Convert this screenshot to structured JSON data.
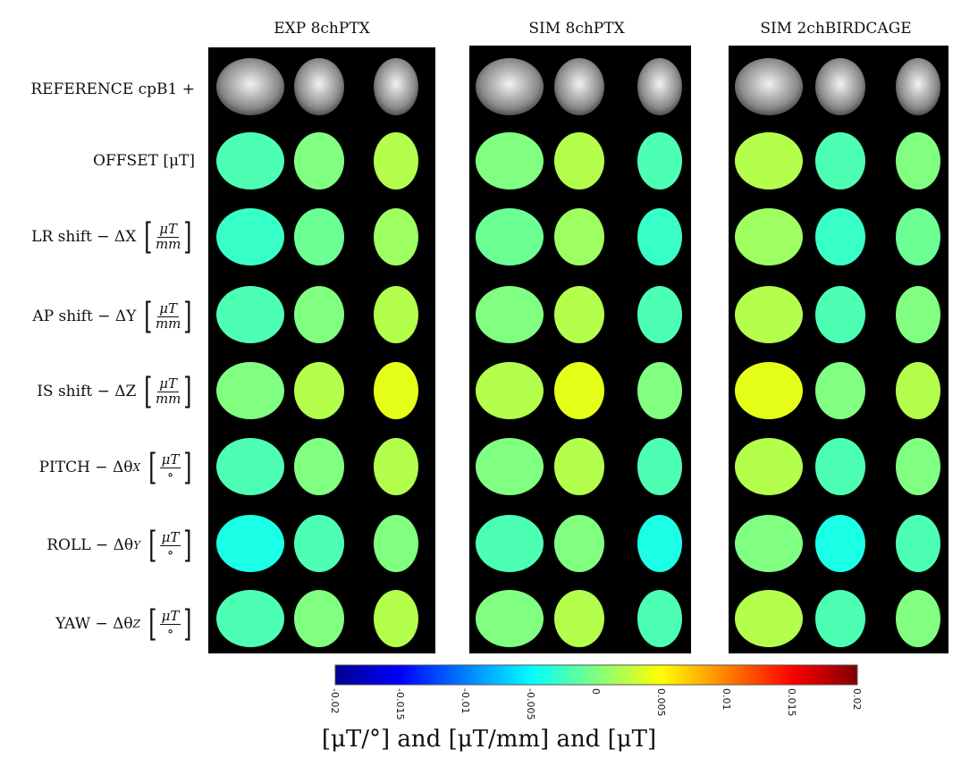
{
  "columns": [
    "EXP 8chPTX",
    "SIM 8chPTX",
    "SIM 2chBIRDCAGE"
  ],
  "rows": [
    {
      "label": "REFERENCE cpB1 +",
      "unit": null,
      "var": null
    },
    {
      "label": "OFFSET [μT]",
      "unit": null,
      "var": null
    },
    {
      "label": "LR shift − ΔX",
      "unit": "mm",
      "var": "X"
    },
    {
      "label": "AP shift −  ΔY",
      "unit": "mm",
      "var": "Y"
    },
    {
      "label": "IS shift − ΔZ",
      "unit": "mm",
      "var": "Z"
    },
    {
      "label": "PITCH − Δθ",
      "sub": "X",
      "unit": "∘"
    },
    {
      "label": "ROLL − Δθ",
      "sub": "Y",
      "unit": "∘"
    },
    {
      "label": "YAW − Δθ",
      "sub": "Z",
      "unit": "∘"
    }
  ],
  "frac_numerator": "μT",
  "colorbar": {
    "ticks": [
      "-0.02",
      "-0.015",
      "-0.01",
      "-0.005",
      "0",
      "0.005",
      "0.01",
      "0.015",
      "0.02"
    ],
    "range": [
      -0.02,
      0.02
    ],
    "colormap": "jet",
    "label": "[μT/°] and [μT/mm] and [μT]"
  },
  "colors": {
    "background": "#000000"
  }
}
